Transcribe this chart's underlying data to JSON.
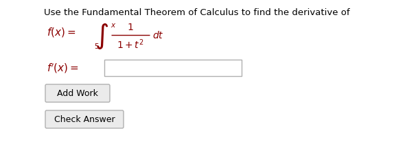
{
  "bg_color": "#ffffff",
  "title_text": "Use the Fundamental Theorem of Calculus to find the derivative of",
  "title_fontsize": 9.5,
  "text_color": "#000000",
  "math_color": "#8B0000",
  "button1_text": "Add Work",
  "button2_text": "Check Answer",
  "button_bg": "#ebebeb",
  "button_border": "#b0b0b0",
  "input_box_edge": "#b0b0b0",
  "font_regular": "DejaVu Sans"
}
